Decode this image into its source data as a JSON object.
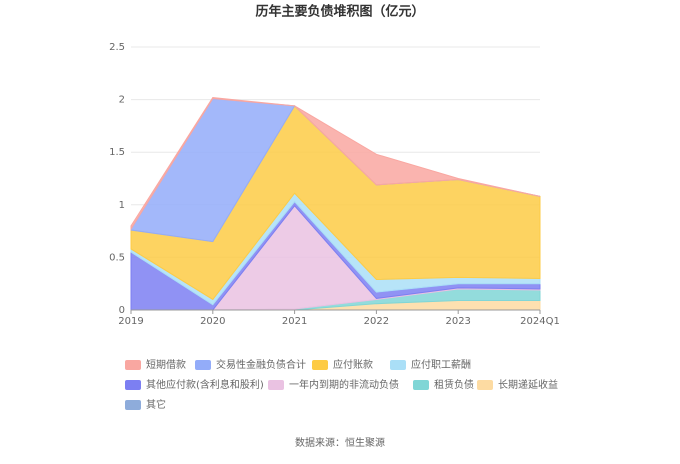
{
  "chart_data": {
    "type": "stacked_area",
    "title": "历年主要负债堆积图（亿元）",
    "source": "数据来源：恒生聚源",
    "categories": [
      "2019",
      "2020",
      "2021",
      "2022",
      "2023",
      "2024Q1"
    ],
    "ylim": [
      0,
      2.5
    ],
    "yticks": [
      0,
      0.5,
      1,
      1.5,
      2,
      2.5
    ],
    "grid": true,
    "series": [
      {
        "name": "短期借款",
        "color": "#f9a7a1",
        "values": [
          0.03,
          0.01,
          0,
          0.29,
          0.01,
          0
        ]
      },
      {
        "name": "交易性金融负债合计",
        "color": "#93acf9",
        "values": [
          0.01,
          1.36,
          0,
          0,
          0,
          0
        ]
      },
      {
        "name": "应付账款",
        "color": "#fdcb45",
        "values": [
          0.18,
          0.55,
          0.83,
          0.9,
          0.93,
          0.78
        ]
      },
      {
        "name": "应付职工薪酬",
        "color": "#aadff7",
        "values": [
          0.03,
          0.05,
          0.08,
          0.12,
          0.06,
          0.05
        ]
      },
      {
        "name": "其他应付款(含利息和股利)",
        "color": "#7c7ff2",
        "values": [
          0.55,
          0.05,
          0.04,
          0.06,
          0.04,
          0.05
        ]
      },
      {
        "name": "一年内到期的非流动负债",
        "color": "#eac2e2",
        "values": [
          0,
          0,
          0.98,
          0.01,
          0.01,
          0.01
        ]
      },
      {
        "name": "租赁负债",
        "color": "#80d6d6",
        "values": [
          0,
          0,
          0.01,
          0.04,
          0.11,
          0.1
        ]
      },
      {
        "name": "长期递延收益",
        "color": "#fddba2",
        "values": [
          0,
          0,
          0,
          0.06,
          0.09,
          0.09
        ]
      },
      {
        "name": "其它",
        "color": "#8eacdb",
        "values": [
          0,
          0,
          0,
          0,
          0,
          0
        ]
      }
    ]
  }
}
